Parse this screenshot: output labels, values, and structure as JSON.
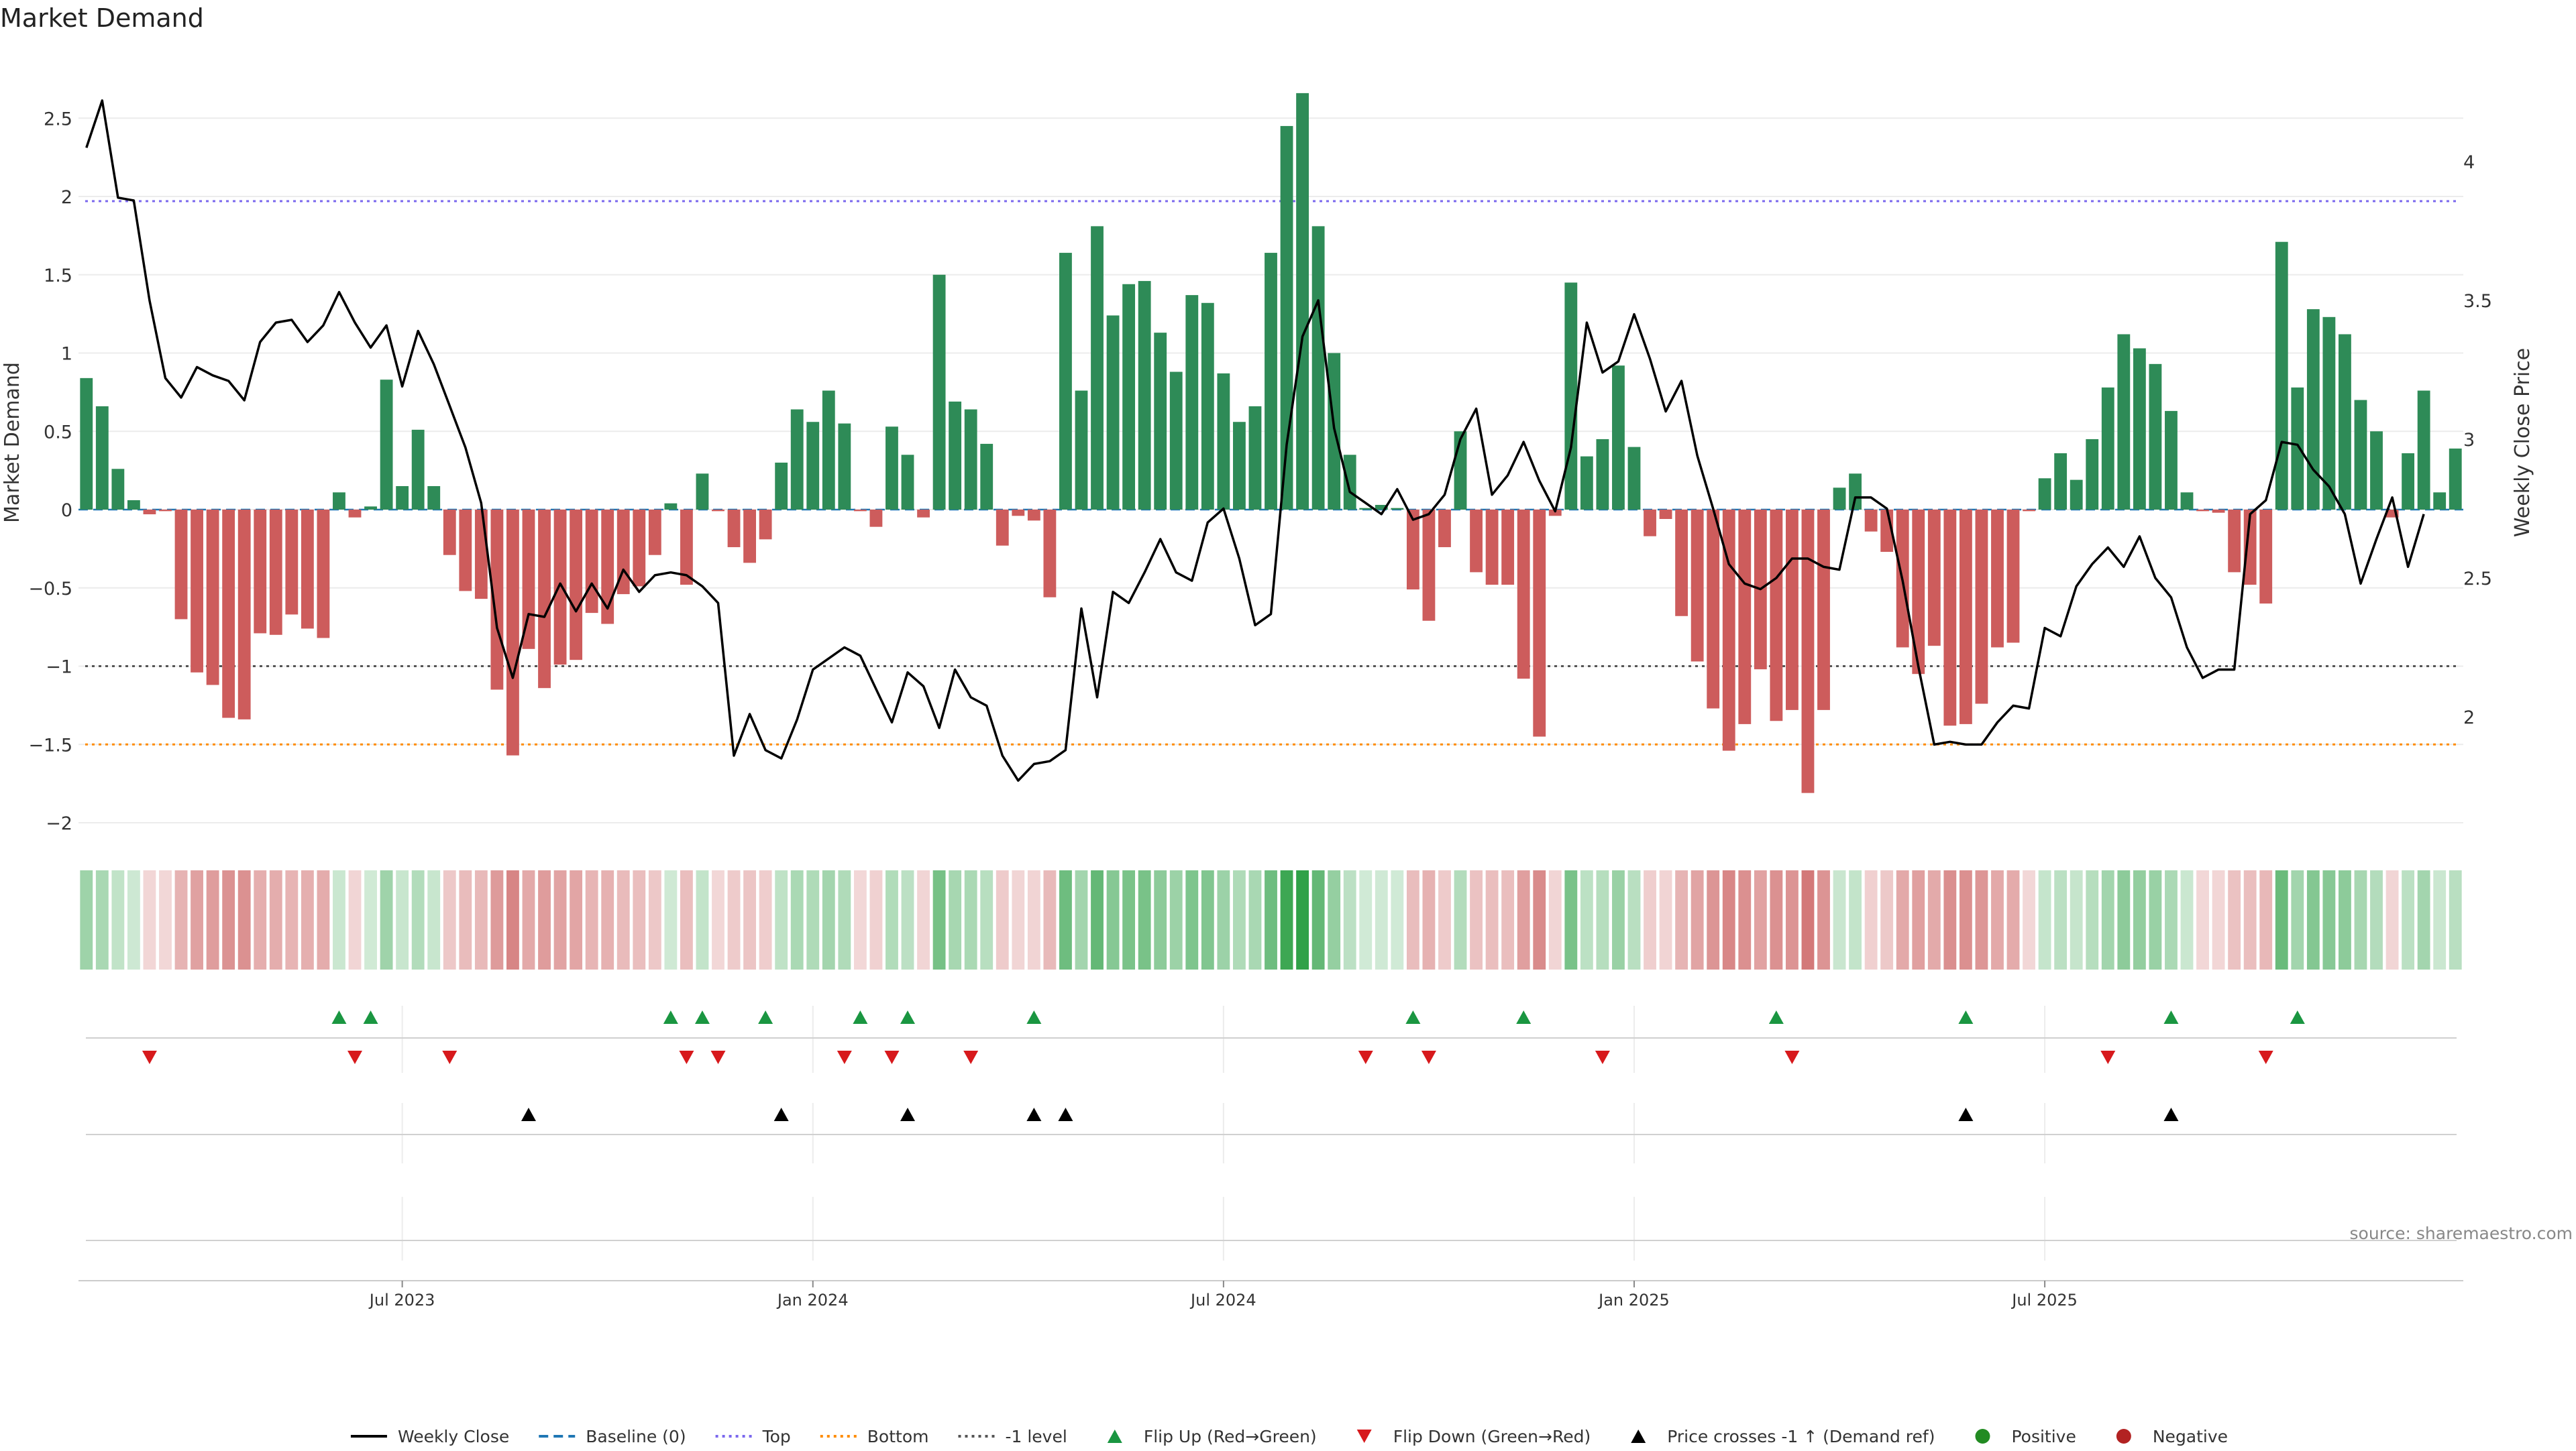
{
  "chart_data": {
    "type": "bar",
    "title": "Market Demand",
    "ylabel": "Market Demand",
    "y2label": "Weekly Close Price",
    "ylim": [
      -2.1,
      2.5
    ],
    "y2lim": [
      1.77,
      4.3
    ],
    "yticks": [
      2.5,
      2,
      1.5,
      1,
      0.5,
      0,
      -0.5,
      -1,
      -1.5,
      -2
    ],
    "yticklabels": [
      "2.5",
      "2",
      "1.5",
      "1",
      "0.5",
      "0",
      "−0.5",
      "−1",
      "−1.5",
      "−2"
    ],
    "y2ticks": [
      4,
      3.5,
      3,
      2.5,
      2
    ],
    "y2ticklabels": [
      "4",
      "3.5",
      "3",
      "2.5",
      "2"
    ],
    "xticklabels": [
      "Jul 2023",
      "Jan 2024",
      "Jul 2024",
      "Jan 2025",
      "Jul 2025"
    ],
    "xtick_positions": [
      20.5,
      46.5,
      72.5,
      98.5,
      124.5
    ],
    "levels": {
      "top": 1.97,
      "minus_one": -1.0,
      "bottom": -1.5,
      "baseline": 0
    },
    "colors": {
      "positive": "#2e8b57",
      "negative": "#cd5c5c",
      "line": "#000000",
      "flip_up": "#1a9641",
      "flip_down": "#d7191c",
      "top": "#7b68ee",
      "bottom": "#ff8c00",
      "minus_one": "#555555",
      "baseline": "#1f77b4"
    },
    "demand": [
      0.84,
      0.66,
      0.26,
      0.06,
      -0.03,
      -0.01,
      -0.7,
      -1.04,
      -1.12,
      -1.33,
      -1.34,
      -0.79,
      -0.8,
      -0.67,
      -0.76,
      -0.82,
      0.11,
      -0.05,
      0.02,
      0.83,
      0.15,
      0.51,
      0.15,
      -0.29,
      -0.52,
      -0.57,
      -1.15,
      -1.57,
      -0.89,
      -1.14,
      -0.99,
      -0.96,
      -0.66,
      -0.73,
      -0.54,
      -0.49,
      -0.29,
      0.04,
      -0.48,
      0.23,
      -0.01,
      -0.24,
      -0.34,
      -0.19,
      0.3,
      0.64,
      0.56,
      0.76,
      0.55,
      -0.01,
      -0.11,
      0.53,
      0.35,
      -0.05,
      1.5,
      0.69,
      0.64,
      0.42,
      -0.23,
      -0.04,
      -0.07,
      -0.56,
      1.64,
      0.76,
      1.81,
      1.24,
      1.44,
      1.46,
      1.13,
      0.88,
      1.37,
      1.32,
      0.87,
      0.56,
      0.66,
      1.64,
      2.45,
      2.66,
      1.81,
      1.0,
      0.35,
      0.01,
      0.03,
      0.01,
      -0.51,
      -0.71,
      -0.24,
      0.5,
      -0.4,
      -0.48,
      -0.48,
      -1.08,
      -1.45,
      -0.04,
      1.45,
      0.34,
      0.45,
      0.92,
      0.4,
      -0.17,
      -0.06,
      -0.68,
      -0.97,
      -1.27,
      -1.54,
      -1.37,
      -1.02,
      -1.35,
      -1.28,
      -1.81,
      -1.28,
      0.14,
      0.23,
      -0.14,
      -0.27,
      -0.88,
      -1.05,
      -0.87,
      -1.38,
      -1.37,
      -1.24,
      -0.88,
      -0.85,
      -0.01,
      0.2,
      0.36,
      0.19,
      0.45,
      0.78,
      1.12,
      1.03,
      0.93,
      0.63,
      0.11,
      -0.01,
      -0.02,
      -0.4,
      -0.48,
      -0.6,
      1.71,
      0.78,
      1.28,
      1.23,
      1.12,
      0.7,
      0.5,
      -0.05,
      0.36,
      0.76,
      0.11,
      0.39
    ],
    "weekly_close": [
      4.05,
      4.22,
      3.87,
      3.86,
      3.5,
      3.22,
      3.15,
      3.26,
      3.23,
      3.21,
      3.14,
      3.35,
      3.42,
      3.43,
      3.35,
      3.41,
      3.53,
      3.42,
      3.33,
      3.41,
      3.19,
      3.39,
      3.27,
      3.12,
      2.97,
      2.77,
      2.32,
      2.14,
      2.37,
      2.36,
      2.48,
      2.38,
      2.48,
      2.39,
      2.53,
      2.45,
      2.51,
      2.52,
      2.51,
      2.47,
      2.41,
      1.86,
      2.01,
      1.88,
      1.85,
      1.99,
      2.17,
      2.21,
      2.25,
      2.22,
      2.1,
      1.98,
      2.16,
      2.11,
      1.96,
      2.17,
      2.07,
      2.04,
      1.86,
      1.77,
      1.83,
      1.84,
      1.88,
      2.39,
      2.07,
      2.45,
      2.41,
      2.52,
      2.64,
      2.52,
      2.49,
      2.7,
      2.75,
      2.57,
      2.33,
      2.37,
      2.98,
      3.37,
      3.5,
      3.04,
      2.81,
      2.77,
      2.73,
      2.82,
      2.71,
      2.73,
      2.8,
      3.0,
      3.11,
      2.8,
      2.87,
      2.99,
      2.85,
      2.74,
      2.97,
      3.42,
      3.24,
      3.28,
      3.45,
      3.29,
      3.1,
      3.21,
      2.94,
      2.75,
      2.55,
      2.48,
      2.46,
      2.5,
      2.57,
      2.57,
      2.54,
      2.53,
      2.79,
      2.79,
      2.75,
      2.49,
      2.18,
      1.9,
      1.91,
      1.9,
      1.9,
      1.98,
      2.04,
      2.03,
      2.32,
      2.29,
      2.47,
      2.55,
      2.61,
      2.54,
      2.65,
      2.5,
      2.43,
      2.25,
      2.14,
      2.17,
      2.17,
      2.73,
      2.78,
      2.99,
      2.98,
      2.89,
      2.83,
      2.73,
      2.48,
      2.64,
      2.79,
      2.54,
      2.73
    ],
    "flip_up": [
      16,
      18,
      37,
      39,
      43,
      49,
      52,
      60,
      84,
      91,
      107,
      119,
      132,
      140
    ],
    "flip_down": [
      4,
      17,
      23,
      38,
      40,
      48,
      51,
      56,
      81,
      85,
      96,
      108,
      128,
      138
    ],
    "price_crosses": [
      28,
      44,
      52,
      60,
      62,
      119,
      132
    ],
    "source": "source: sharemaestro.com",
    "legend": [
      {
        "label": "Weekly Close",
        "marker": "solid-line"
      },
      {
        "label": "Baseline (0)",
        "marker": "dashed-line"
      },
      {
        "label": "Top",
        "marker": "dotted-line"
      },
      {
        "label": "Bottom",
        "marker": "dotted-line"
      },
      {
        "label": "-1 level",
        "marker": "dotted-line"
      },
      {
        "label": "Flip Up (Red→Green)",
        "marker": "triangle-up"
      },
      {
        "label": "Flip Down (Green→Red)",
        "marker": "triangle-down"
      },
      {
        "label": "Price crosses -1 ↑ (Demand ref)",
        "marker": "triangle-up"
      },
      {
        "label": "Positive",
        "marker": "circle"
      },
      {
        "label": "Negative",
        "marker": "circle"
      }
    ]
  }
}
